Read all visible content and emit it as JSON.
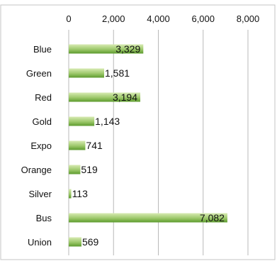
{
  "chart_data": {
    "type": "bar",
    "orientation": "horizontal",
    "categories": [
      "Blue",
      "Green",
      "Red",
      "Gold",
      "Expo",
      "Orange",
      "Silver",
      "Bus",
      "Union"
    ],
    "values": [
      3329,
      1581,
      3194,
      1143,
      741,
      519,
      113,
      7082,
      569
    ],
    "value_labels": [
      "3,329",
      "1,581",
      "3,194",
      "1,143",
      "741",
      "519",
      "113",
      "7,082",
      "569"
    ],
    "xlim": [
      0,
      8000
    ],
    "x_ticks": [
      0,
      2000,
      4000,
      6000,
      8000
    ],
    "x_tick_labels": [
      "0",
      "2,000",
      "4,000",
      "6,000",
      "8,000"
    ],
    "x_axis_position": "top",
    "grid": true,
    "legend": "none",
    "colors": {
      "bar_light": "#d8ebb3",
      "bar_dark": "#5c9a2d",
      "grid": "#b8b8b8",
      "border": "#c4c4c4",
      "text": "#111111"
    }
  }
}
